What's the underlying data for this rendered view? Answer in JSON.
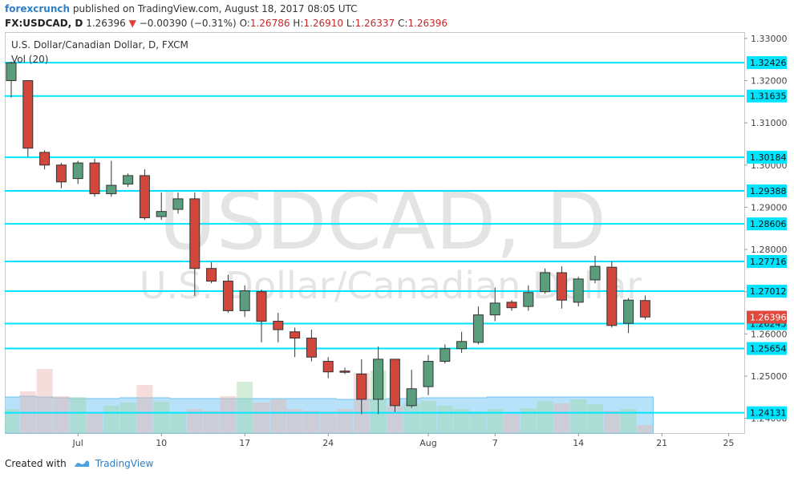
{
  "header": {
    "author": "forexcrunch",
    "published": "published on TradingView.com, August 18, 2017 08:05 UTC",
    "symbol": "FX:USDCAD, D",
    "last": "1.26396",
    "change": "−0.00390 (−0.31%)",
    "o_label": "O:",
    "o": "1.26786",
    "h_label": "H:",
    "h": "1.26910",
    "l_label": "L:",
    "l": "1.26337",
    "c_label": "C:",
    "c": "1.26396"
  },
  "footer": {
    "created_with": "Created with",
    "brand": "TradingView"
  },
  "colors": {
    "up": "#5a9e7e",
    "down": "#d2473b",
    "hline": "#00e5ff",
    "vol_area": "#9fd8f7",
    "watermark": "#e4e4e4"
  },
  "chart_data": {
    "type": "candlestick",
    "title": "U.S. Dollar/Canadian Dollar, D, FXCM",
    "indicator": "Vol (20)",
    "watermark": [
      "USDCAD, D",
      "U.S. Dollar/Canadian Dollar"
    ],
    "ylim": [
      1.2365,
      1.3315
    ],
    "y_ticks": [
      "1.33000",
      "1.32000",
      "1.31000",
      "1.30000",
      "1.29000",
      "1.28000",
      "1.27000",
      "1.26000",
      "1.25000",
      "1.24000"
    ],
    "x_ticks": [
      {
        "label": "Jul",
        "i": 4
      },
      {
        "label": "10",
        "i": 9
      },
      {
        "label": "17",
        "i": 14
      },
      {
        "label": "24",
        "i": 19
      },
      {
        "label": "Aug",
        "i": 25
      },
      {
        "label": "7",
        "i": 29
      },
      {
        "label": "14",
        "i": 34
      },
      {
        "label": "21",
        "i": 39
      },
      {
        "label": "25",
        "i": 43
      }
    ],
    "levels": [
      "1.32426",
      "1.31635",
      "1.30184",
      "1.29388",
      "1.28606",
      "1.27716",
      "1.27012",
      "1.26243",
      "1.25654",
      "1.24131"
    ],
    "last_price": "1.26396",
    "candles": [
      {
        "o": 1.32,
        "h": 1.3245,
        "l": 1.316,
        "c": 1.3242
      },
      {
        "o": 1.32,
        "h": 1.32,
        "l": 1.302,
        "c": 1.304
      },
      {
        "o": 1.303,
        "h": 1.3035,
        "l": 1.299,
        "c": 1.3
      },
      {
        "o": 1.3,
        "h": 1.3005,
        "l": 1.2945,
        "c": 1.296
      },
      {
        "o": 1.2968,
        "h": 1.301,
        "l": 1.2955,
        "c": 1.3005
      },
      {
        "o": 1.3005,
        "h": 1.3015,
        "l": 1.2925,
        "c": 1.2932
      },
      {
        "o": 1.2932,
        "h": 1.301,
        "l": 1.2925,
        "c": 1.2952
      },
      {
        "o": 1.2955,
        "h": 1.298,
        "l": 1.2948,
        "c": 1.2975
      },
      {
        "o": 1.2975,
        "h": 1.299,
        "l": 1.287,
        "c": 1.2875
      },
      {
        "o": 1.2878,
        "h": 1.2935,
        "l": 1.287,
        "c": 1.289
      },
      {
        "o": 1.2895,
        "h": 1.2935,
        "l": 1.2885,
        "c": 1.292
      },
      {
        "o": 1.292,
        "h": 1.2935,
        "l": 1.269,
        "c": 1.2755
      },
      {
        "o": 1.2755,
        "h": 1.277,
        "l": 1.272,
        "c": 1.2725
      },
      {
        "o": 1.2725,
        "h": 1.274,
        "l": 1.265,
        "c": 1.2655
      },
      {
        "o": 1.2655,
        "h": 1.2715,
        "l": 1.264,
        "c": 1.2702
      },
      {
        "o": 1.27,
        "h": 1.2705,
        "l": 1.258,
        "c": 1.263
      },
      {
        "o": 1.263,
        "h": 1.265,
        "l": 1.258,
        "c": 1.261
      },
      {
        "o": 1.2605,
        "h": 1.2615,
        "l": 1.2545,
        "c": 1.259
      },
      {
        "o": 1.259,
        "h": 1.261,
        "l": 1.2535,
        "c": 1.2545
      },
      {
        "o": 1.2535,
        "h": 1.2545,
        "l": 1.2495,
        "c": 1.251
      },
      {
        "o": 1.2512,
        "h": 1.252,
        "l": 1.2505,
        "c": 1.2509
      },
      {
        "o": 1.2505,
        "h": 1.254,
        "l": 1.241,
        "c": 1.2445
      },
      {
        "o": 1.2445,
        "h": 1.257,
        "l": 1.241,
        "c": 1.254
      },
      {
        "o": 1.254,
        "h": 1.254,
        "l": 1.2415,
        "c": 1.243
      },
      {
        "o": 1.243,
        "h": 1.2515,
        "l": 1.2425,
        "c": 1.247
      },
      {
        "o": 1.2475,
        "h": 1.255,
        "l": 1.2455,
        "c": 1.2535
      },
      {
        "o": 1.2535,
        "h": 1.2575,
        "l": 1.253,
        "c": 1.2565
      },
      {
        "o": 1.2565,
        "h": 1.2605,
        "l": 1.2555,
        "c": 1.2582
      },
      {
        "o": 1.258,
        "h": 1.2665,
        "l": 1.2575,
        "c": 1.2645
      },
      {
        "o": 1.2645,
        "h": 1.271,
        "l": 1.263,
        "c": 1.2673
      },
      {
        "o": 1.2675,
        "h": 1.268,
        "l": 1.2655,
        "c": 1.2662
      },
      {
        "o": 1.2665,
        "h": 1.2715,
        "l": 1.2655,
        "c": 1.2698
      },
      {
        "o": 1.27,
        "h": 1.2755,
        "l": 1.2695,
        "c": 1.2745
      },
      {
        "o": 1.2745,
        "h": 1.276,
        "l": 1.266,
        "c": 1.268
      },
      {
        "o": 1.2675,
        "h": 1.2735,
        "l": 1.2665,
        "c": 1.273
      },
      {
        "o": 1.2728,
        "h": 1.2785,
        "l": 1.272,
        "c": 1.276
      },
      {
        "o": 1.2758,
        "h": 1.2772,
        "l": 1.2615,
        "c": 1.262
      },
      {
        "o": 1.2625,
        "h": 1.2685,
        "l": 1.2602,
        "c": 1.268
      },
      {
        "o": 1.2679,
        "h": 1.2691,
        "l": 1.2634,
        "c": 1.264
      }
    ],
    "volume_area": [
      0.45,
      0.46,
      0.45,
      0.44,
      0.43,
      0.43,
      0.43,
      0.44,
      0.44,
      0.44,
      0.43,
      0.43,
      0.43,
      0.43,
      0.43,
      0.43,
      0.43,
      0.43,
      0.43,
      0.43,
      0.42,
      0.42,
      0.42,
      0.43,
      0.43,
      0.44,
      0.44,
      0.44,
      0.44,
      0.45,
      0.45,
      0.45,
      0.45,
      0.45,
      0.45,
      0.45,
      0.45,
      0.45,
      0.45
    ],
    "volume_bars": [
      0.3,
      0.52,
      0.8,
      0.46,
      0.45,
      0.25,
      0.34,
      0.38,
      0.6,
      0.39,
      0.26,
      0.3,
      0.28,
      0.46,
      0.64,
      0.38,
      0.42,
      0.3,
      0.28,
      0.27,
      0.3,
      0.75,
      0.78,
      0.34,
      0.37,
      0.4,
      0.34,
      0.3,
      0.27,
      0.3,
      0.24,
      0.31,
      0.4,
      0.37,
      0.42,
      0.36,
      0.28,
      0.3,
      0.1
    ]
  }
}
